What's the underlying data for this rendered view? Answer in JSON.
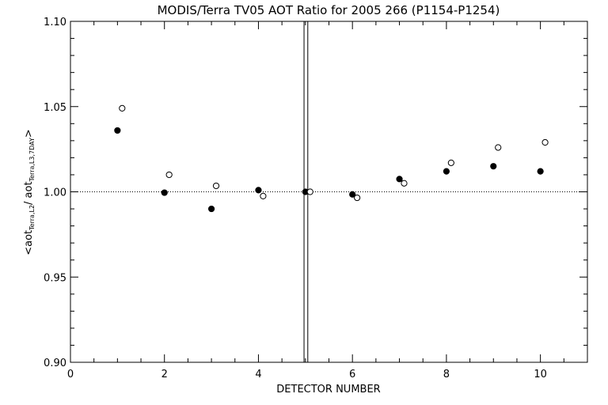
{
  "chart_data": {
    "type": "scatter",
    "title": "MODIS/Terra TV05 AOT Ratio for 2005 266 (P1154-P1254)",
    "xlabel": "DETECTOR NUMBER",
    "ylabel": {
      "prefix": "<aot",
      "sub1": "Terra,L2",
      "mid": "/ aot",
      "sub2": "Terra,L3,7DAY",
      "suffix": ">"
    },
    "xlim": [
      0,
      11
    ],
    "ylim": [
      0.9,
      1.1
    ],
    "x_ticks": [
      0,
      2,
      4,
      6,
      8,
      10
    ],
    "y_ticks": [
      0.9,
      0.95,
      1.0,
      1.05,
      1.1
    ],
    "x_tick_labels": [
      "0",
      "2",
      "4",
      "6",
      "8",
      "10"
    ],
    "y_tick_labels": [
      "0.90",
      "0.95",
      "1.00",
      "1.05",
      "1.10"
    ],
    "reference_line": {
      "y": 1.0,
      "style": "dotted"
    },
    "vertical_lines": [
      4.97,
      5.05
    ],
    "series": [
      {
        "marker": "filled-circle",
        "x": [
          1,
          2,
          3,
          4,
          5,
          6,
          7,
          8,
          9,
          10
        ],
        "y": [
          1.036,
          0.9995,
          0.99,
          1.001,
          1.0,
          0.9985,
          1.0075,
          1.012,
          1.015,
          1.012
        ]
      },
      {
        "marker": "open-circle",
        "x": [
          1.1,
          2.1,
          3.1,
          4.1,
          5.1,
          6.1,
          7.1,
          8.1,
          9.1,
          10.1
        ],
        "y": [
          1.049,
          1.01,
          1.0035,
          0.9975,
          1.0,
          0.9965,
          1.005,
          1.017,
          1.026,
          1.029
        ]
      }
    ]
  }
}
